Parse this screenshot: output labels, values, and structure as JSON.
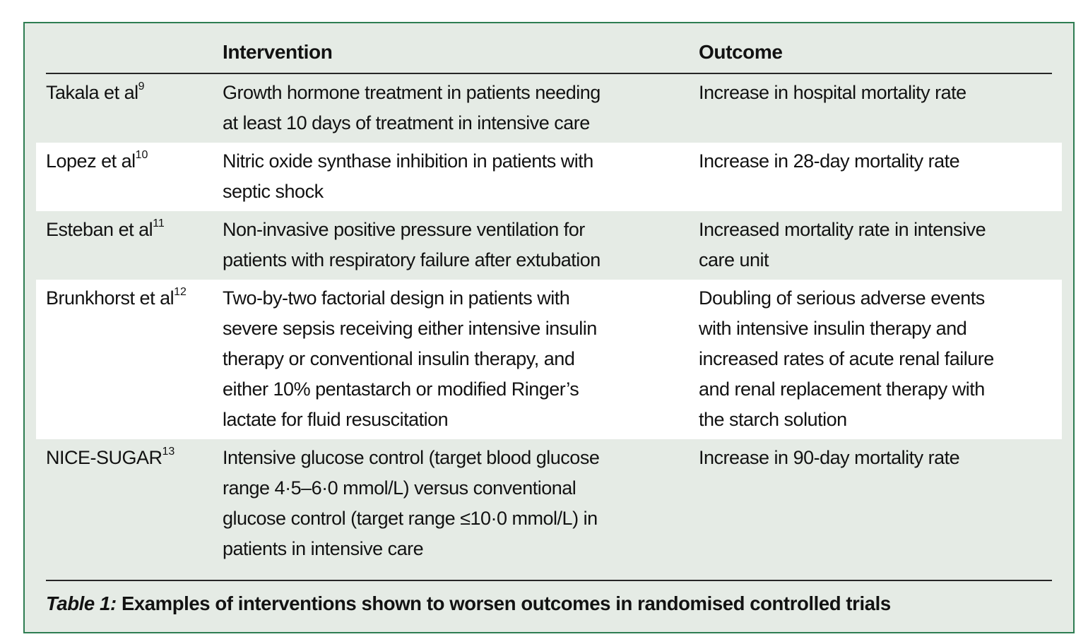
{
  "table": {
    "columns": {
      "study": "",
      "intervention": "Intervention",
      "outcome": "Outcome"
    },
    "rows": [
      {
        "study": "Takala et al",
        "ref": "9",
        "intervention": "Growth hormone treatment in patients needing\nat least 10 days of treatment in intensive care",
        "outcome": "Increase in hospital mortality rate"
      },
      {
        "study": "Lopez et al",
        "ref": "10",
        "intervention": "Nitric oxide synthase inhibition in patients with\nseptic shock",
        "outcome": "Increase in 28-day mortality rate"
      },
      {
        "study": "Esteban et al",
        "ref": "11",
        "intervention": "Non-invasive positive pressure ventilation for\npatients with respiratory failure after extubation",
        "outcome": "Increased mortality rate in intensive\ncare unit"
      },
      {
        "study": "Brunkhorst et al",
        "ref": "12",
        "intervention": "Two-by-two factorial design in patients with\nsevere sepsis receiving either intensive insulin\ntherapy or conventional insulin therapy, and\neither 10% pentastarch or modified Ringer’s\nlactate for fluid resuscitation",
        "outcome": "Doubling of serious adverse events\nwith intensive insulin therapy and\nincreased rates of acute renal failure\nand renal replacement therapy with\nthe starch solution"
      },
      {
        "study": "NICE-SUGAR",
        "ref": "13",
        "intervention": "Intensive glucose control (target blood glucose\nrange 4·5–6·0 mmol/L) versus conventional\nglucose control (target range ≤10·0 mmol/L) in\npatients in intensive care",
        "outcome": "Increase in 90-day mortality rate"
      }
    ],
    "caption": {
      "label": "Table 1:",
      "text": " Examples of interventions shown to worsen outcomes in randomised controlled trials"
    }
  },
  "colors": {
    "card_background": "#e5ebe5",
    "card_border": "#2e7d52",
    "stripe": "#ffffff",
    "rule": "#262626",
    "text": "#121212"
  }
}
